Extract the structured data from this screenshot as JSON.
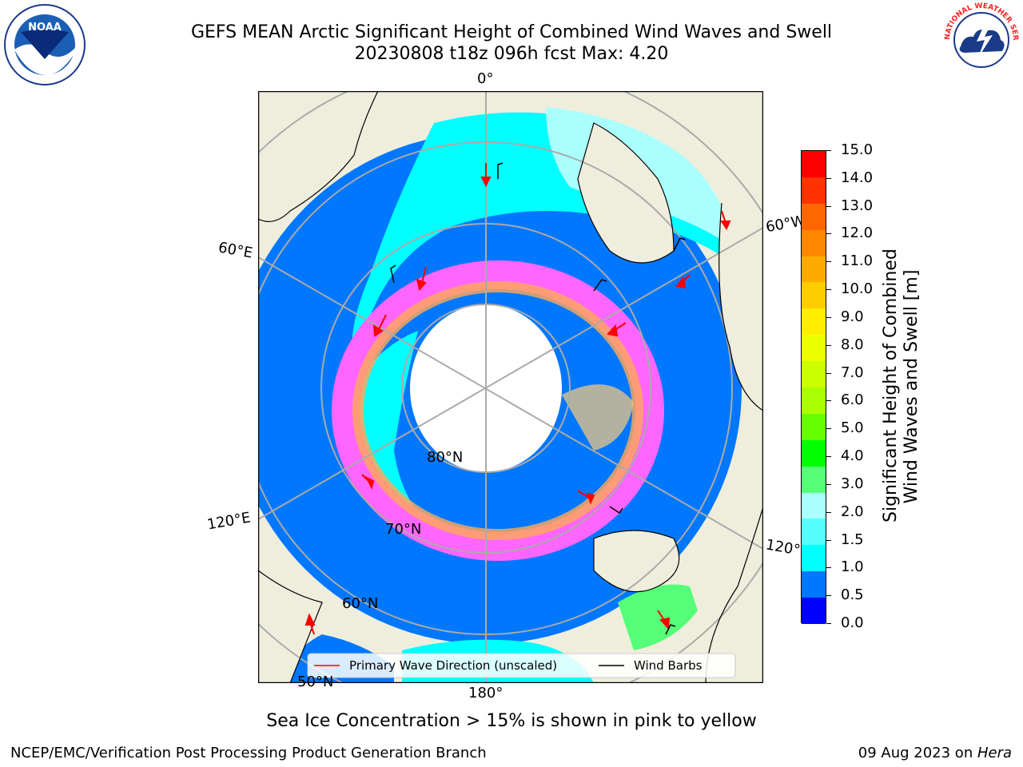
{
  "title_line1": "GEFS MEAN Arctic Significant Height of Combined Wind Waves and Swell",
  "title_line2": "20230808 t18z 096h fcst   Max: 4.20",
  "longitude_labels": {
    "lon0": "0°",
    "lon60w": "60°W",
    "lon60e": "60°E",
    "lon120e": "120°E",
    "lon120w": "120°",
    "lon180": "180°"
  },
  "latitude_labels": {
    "lat80": "80°N",
    "lat70": "70°N",
    "lat60": "60°N",
    "lat50": "50°N"
  },
  "legend": {
    "primary_wave": "Primary Wave Direction (unscaled)",
    "wind_barbs": "Wind Barbs"
  },
  "colorbar": {
    "label_line1": "Significant Height of Combined",
    "label_line2": "Wind Waves and Swell [m]",
    "ticks": [
      "15.0",
      "14.0",
      "13.0",
      "12.0",
      "11.0",
      "10.0",
      "9.0",
      "8.0",
      "7.0",
      "6.0",
      "5.0",
      "4.0",
      "3.0",
      "2.0",
      "1.5",
      "1.0",
      "0.5",
      "0.0"
    ],
    "colors_top_to_bottom": [
      "#ff0000",
      "#ff3300",
      "#ff6600",
      "#ff8800",
      "#ffaa00",
      "#ffcc00",
      "#ffee00",
      "#eeff00",
      "#ccff00",
      "#aaff00",
      "#66ff00",
      "#00ff00",
      "#55ff77",
      "#aaffff",
      "#55ffff",
      "#00ffff",
      "#0077ff",
      "#0000ff"
    ]
  },
  "caption": "Sea Ice Concentration > 15% is shown in pink to yellow",
  "footer_left": "NCEP/EMC/Verification Post Processing Product Generation Branch",
  "footer_right_prefix": "09 Aug 2023 on ",
  "footer_right_host": "Hera",
  "logos": {
    "noaa_text": "NOAA",
    "nws_text": "NATIONAL WEATHER SERVICE"
  },
  "map_colors": {
    "land": "#efeedd",
    "ice_interior": "#ffffff",
    "arrows": "#ff0000",
    "barbs": "#000000"
  }
}
